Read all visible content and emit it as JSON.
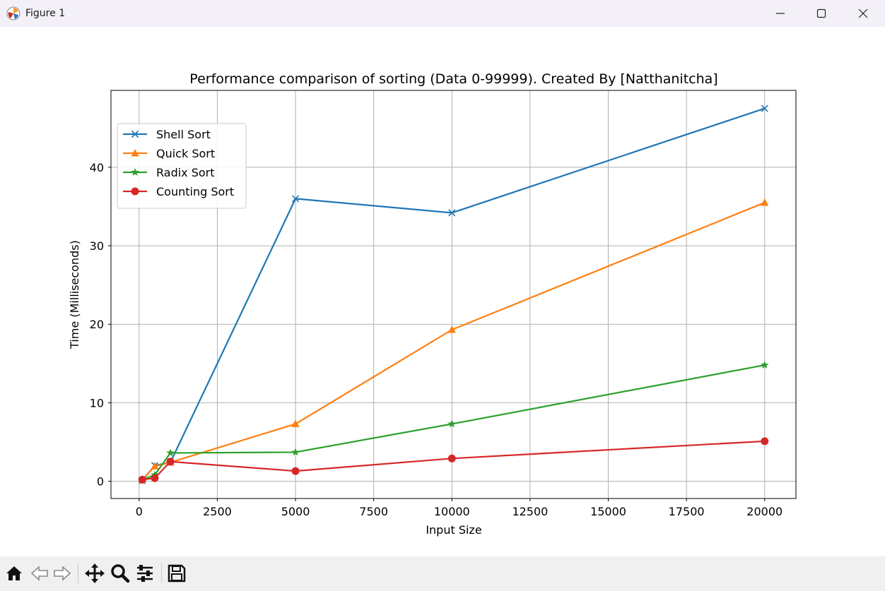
{
  "window": {
    "title": "Figure 1",
    "icons": {
      "app": "matplotlib-icon",
      "minimize": "minimize-icon",
      "maximize": "maximize-icon",
      "close": "close-icon"
    }
  },
  "toolbar": {
    "buttons": [
      "home-icon",
      "back-icon",
      "forward-icon",
      "pan-icon",
      "zoom-icon",
      "configure-subplots-icon",
      "save-icon"
    ]
  },
  "chart_data": {
    "type": "line",
    "title": "Performance comparison of sorting (Data 0-99999). Created By [Natthanitcha]",
    "xlabel": "Input Size",
    "ylabel": "Time (Milliseconds)",
    "xlim": [
      -900,
      21000
    ],
    "ylim": [
      -2.2,
      49.8
    ],
    "xticks": [
      0,
      2500,
      5000,
      7500,
      10000,
      12500,
      15000,
      17500,
      20000
    ],
    "yticks": [
      0,
      10,
      20,
      30,
      40
    ],
    "grid": true,
    "legend_position": "upper left",
    "x": [
      100,
      500,
      1000,
      5000,
      10000,
      20000
    ],
    "series": [
      {
        "name": "Shell Sort",
        "color": "#1f77b4",
        "marker": "x",
        "values": [
          0.1,
          2.0,
          2.4,
          36.0,
          34.2,
          47.5
        ]
      },
      {
        "name": "Quick Sort",
        "color": "#ff7f0e",
        "marker": "triangle",
        "values": [
          0.2,
          1.9,
          2.4,
          7.3,
          19.3,
          35.5
        ]
      },
      {
        "name": "Radix Sort",
        "color": "#2ca02c",
        "marker": "star",
        "values": [
          0.2,
          0.8,
          3.6,
          3.7,
          7.3,
          14.8
        ]
      },
      {
        "name": "Counting Sort",
        "color": "#d62728",
        "marker": "circle",
        "values": [
          0.2,
          0.4,
          2.5,
          1.3,
          2.9,
          5.1
        ]
      }
    ]
  }
}
